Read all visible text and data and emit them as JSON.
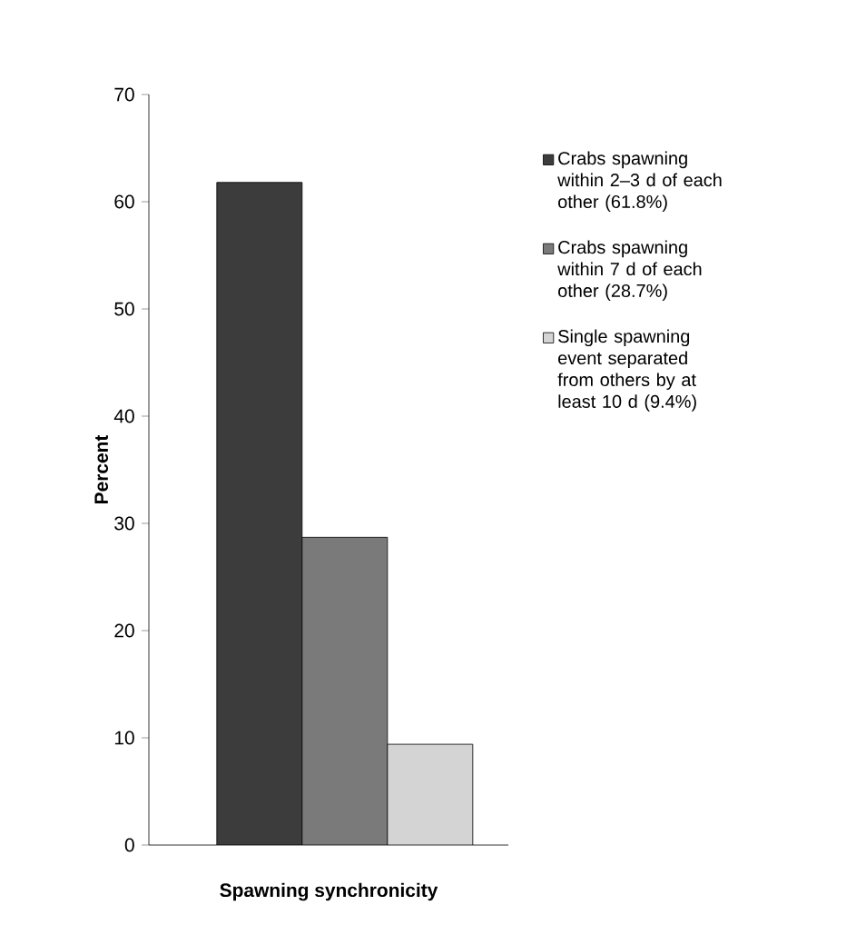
{
  "chart_data": {
    "type": "bar",
    "xlabel": "Spawning synchronicity",
    "ylabel": "Percent",
    "categories": [
      null
    ],
    "series": [
      {
        "name": "Crabs spawning within 2–3 d of each other (61.8%)",
        "color": "#3c3c3c",
        "values": [
          61.8
        ]
      },
      {
        "name": "Crabs spawning within 7 d of each other (28.7%)",
        "color": "#7a7a7a",
        "values": [
          28.7
        ]
      },
      {
        "name": "Single spawning event separated from others by at least 10 d (9.4%)",
        "color": "#d4d4d4",
        "values": [
          9.4
        ]
      }
    ],
    "ylim": [
      0,
      70
    ],
    "yticks": [
      0,
      10,
      20,
      30,
      40,
      50,
      60,
      70
    ],
    "legend": "right",
    "tick_labels": "y"
  }
}
